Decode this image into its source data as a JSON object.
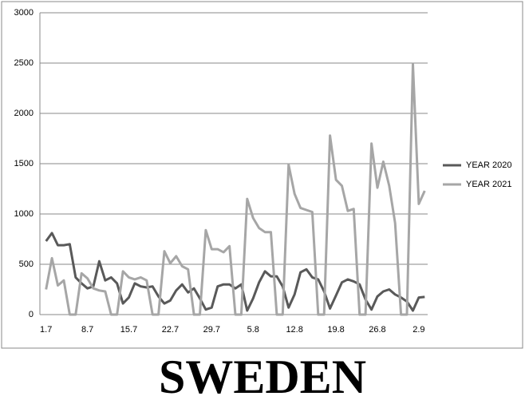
{
  "chart_data": {
    "type": "line",
    "title": "SWEDEN",
    "categories": [
      "1.7",
      null,
      null,
      null,
      null,
      null,
      null,
      "8.7",
      null,
      null,
      null,
      null,
      null,
      null,
      "15.7",
      null,
      null,
      null,
      null,
      null,
      null,
      "22.7",
      null,
      null,
      null,
      null,
      null,
      null,
      "29.7",
      null,
      null,
      null,
      null,
      null,
      null,
      "5.8",
      null,
      null,
      null,
      null,
      null,
      null,
      "12.8",
      null,
      null,
      null,
      null,
      null,
      null,
      "19.8",
      null,
      null,
      null,
      null,
      null,
      null,
      "26.8",
      null,
      null,
      null,
      null,
      null,
      null,
      "2.9",
      null
    ],
    "series": [
      {
        "name": "YEAR 2020",
        "color": "#595959",
        "values": [
          730,
          810,
          690,
          690,
          700,
          370,
          310,
          260,
          280,
          530,
          340,
          370,
          310,
          110,
          170,
          310,
          280,
          270,
          280,
          180,
          110,
          140,
          240,
          300,
          220,
          260,
          160,
          50,
          70,
          280,
          300,
          300,
          260,
          300,
          40,
          160,
          320,
          430,
          380,
          380,
          280,
          70,
          200,
          420,
          450,
          370,
          350,
          230,
          60,
          190,
          320,
          350,
          330,
          300,
          150,
          50,
          180,
          230,
          250,
          200,
          170,
          130,
          40,
          170,
          175
        ]
      },
      {
        "name": "YEAR 2021",
        "color": "#a6a6a6",
        "values": [
          250,
          560,
          290,
          340,
          0,
          0,
          410,
          360,
          260,
          240,
          230,
          0,
          0,
          430,
          370,
          350,
          370,
          340,
          0,
          0,
          630,
          510,
          580,
          480,
          450,
          0,
          0,
          840,
          650,
          650,
          620,
          680,
          0,
          0,
          1150,
          960,
          860,
          820,
          820,
          0,
          0,
          1490,
          1200,
          1060,
          1040,
          1020,
          0,
          0,
          1780,
          1340,
          1280,
          1030,
          1050,
          0,
          0,
          1700,
          1260,
          1520,
          1280,
          910,
          0,
          0,
          2490,
          1100,
          1230
        ]
      }
    ],
    "ylim": [
      0,
      3000
    ],
    "yticks": [
      0,
      500,
      1000,
      1500,
      2000,
      2500,
      3000
    ],
    "grid": true,
    "legend": "right"
  }
}
